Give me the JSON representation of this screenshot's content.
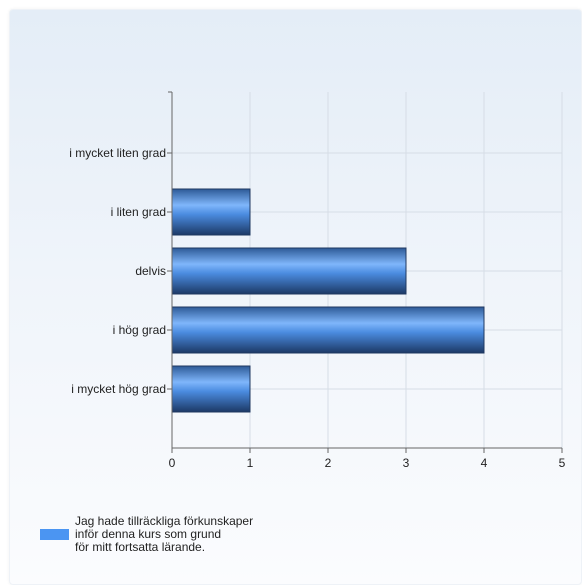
{
  "chart_data": {
    "type": "bar",
    "orientation": "horizontal",
    "categories": [
      "i mycket liten grad",
      "i liten grad",
      "delvis",
      "i hög grad",
      "i mycket hög grad"
    ],
    "series": [
      {
        "name": "Jag hade tillräckliga förkunskaper\ninför denna kurs som grund\nför mitt fortsatta lärande.",
        "values": [
          0,
          1,
          3,
          4,
          1
        ]
      }
    ],
    "xlim": [
      0,
      5
    ],
    "xticks": [
      "0",
      "1",
      "2",
      "3",
      "4",
      "5"
    ],
    "grid": true,
    "legend_position": "bottom-left",
    "colors": {
      "bar": "#4b95f2",
      "bar_dark": "#1f3d6b",
      "grid": "#d6dde6",
      "axis": "#666666"
    }
  }
}
